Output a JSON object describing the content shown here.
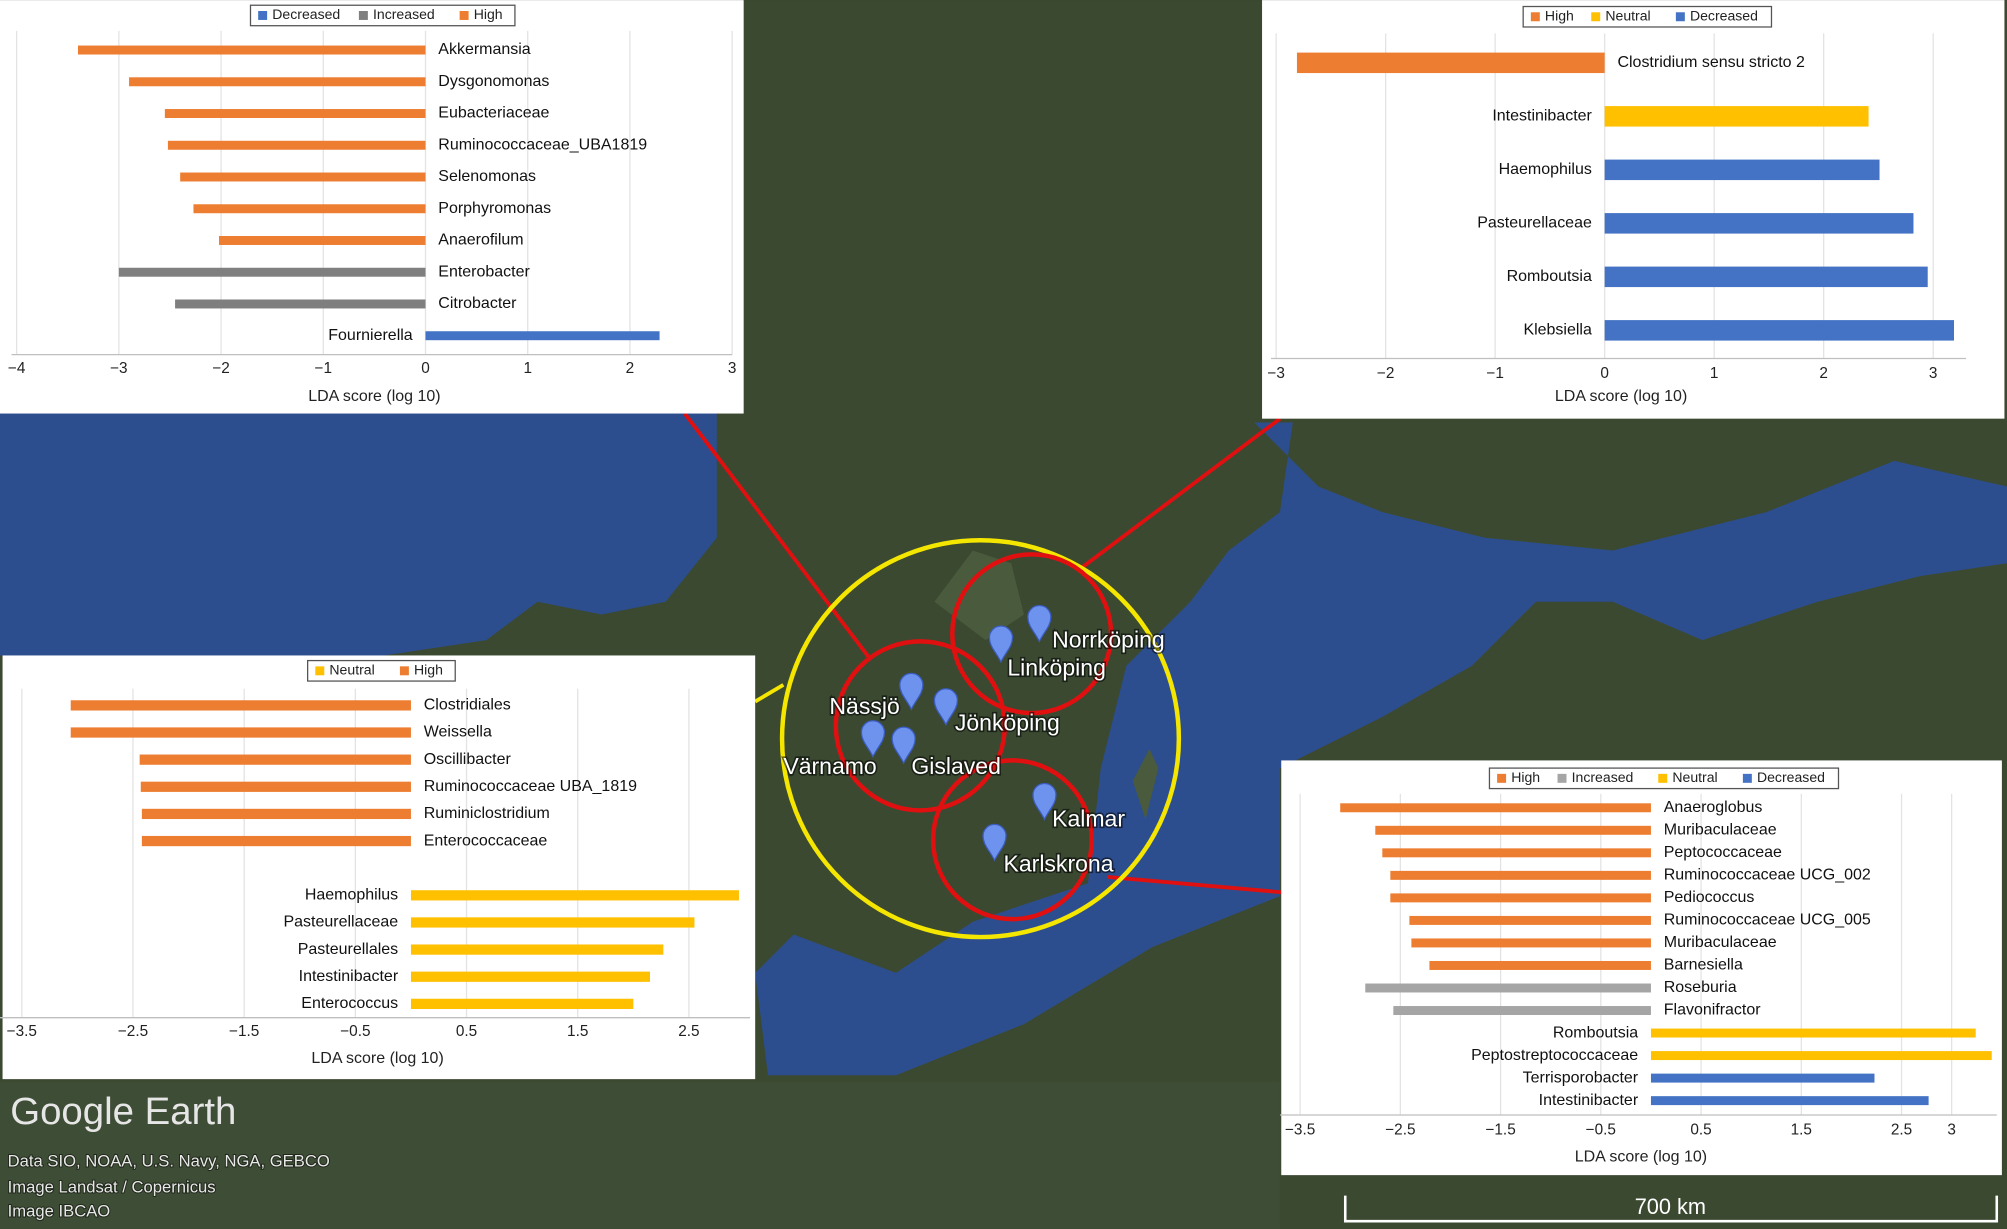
{
  "chart_data": [
    {
      "type": "bar",
      "orientation": "horizontal",
      "x_label": "LDA score (log 10)",
      "legend": "top",
      "grid": true,
      "categories": [
        "Akkermansia",
        "Dysgonomonas",
        "Eubacteriaceae",
        "Ruminococcaceae_UBA1819",
        "Selenomonas",
        "Porphyromonas",
        "Anaerofilum",
        "Enterobacter",
        "Citrobacter",
        "Fournierella"
      ],
      "series": [
        {
          "name": "Decreased",
          "color": "#4472c4",
          "values": [
            null,
            null,
            null,
            null,
            null,
            null,
            null,
            null,
            null,
            2.29
          ]
        },
        {
          "name": "Increased",
          "color": "#7f7f7f",
          "values": [
            null,
            null,
            null,
            null,
            null,
            null,
            null,
            -3.0,
            -2.45,
            null
          ]
        },
        {
          "name": "High",
          "color": "#ed7d31",
          "values": [
            -3.4,
            -2.9,
            -2.55,
            -2.52,
            -2.4,
            -2.27,
            -2.02,
            null,
            null,
            null
          ]
        }
      ],
      "xlim": [
        -4,
        3
      ],
      "xticks": [
        {
          "value": -4,
          "label": "−4"
        },
        {
          "value": -3,
          "label": "−3"
        },
        {
          "value": -2,
          "label": "−2"
        },
        {
          "value": -1,
          "label": "−1"
        },
        0,
        1,
        2,
        3
      ]
    },
    {
      "type": "bar",
      "orientation": "horizontal",
      "x_label": "LDA score (log 10)",
      "legend": "top",
      "grid": true,
      "categories": [
        "Clostridium sensu stricto 2",
        "Intestinibacter",
        "Haemophilus",
        "Pasteurellaceae",
        "Romboutsia",
        "Klebsiella"
      ],
      "series": [
        {
          "name": "High",
          "color": "#ed7d31",
          "values": [
            -2.81,
            null,
            null,
            null,
            null,
            null
          ]
        },
        {
          "name": "Neutral",
          "color": "#ffc000",
          "values": [
            null,
            2.41,
            null,
            null,
            null,
            null
          ]
        },
        {
          "name": "Decreased",
          "color": "#4472c4",
          "values": [
            null,
            null,
            2.51,
            2.82,
            2.95,
            3.19
          ]
        }
      ],
      "xlim": [
        -3,
        3.3
      ],
      "xticks": [
        {
          "value": -3,
          "label": "−3"
        },
        {
          "value": -2,
          "label": "−2"
        },
        {
          "value": -1,
          "label": "−1"
        },
        0,
        1,
        2,
        3
      ]
    },
    {
      "type": "bar",
      "orientation": "horizontal",
      "x_label": "LDA score (log 10)",
      "legend": "top",
      "grid": true,
      "categories": [
        "Clostridiales",
        "Weissella",
        "Oscillibacter",
        "Ruminococcaceae UBA_1819",
        "Ruminiclostridium",
        "Enterococcaceae",
        null,
        "Haemophilus",
        "Pasteurellaceae",
        "Pasteurellales",
        "Intestinibacter",
        "Enterococcus"
      ],
      "series": [
        {
          "name": "Neutral",
          "color": "#ffc000",
          "values": [
            null,
            null,
            null,
            null,
            null,
            null,
            null,
            2.95,
            2.55,
            2.27,
            2.15,
            2.0
          ]
        },
        {
          "name": "High",
          "color": "#ed7d31",
          "values": [
            -3.06,
            -3.06,
            -2.44,
            -2.43,
            -2.42,
            -2.42,
            null,
            null,
            null,
            null,
            null,
            null
          ]
        }
      ],
      "xlim": [
        -3.65,
        3.05
      ],
      "xticks": [
        {
          "value": -3.5,
          "label": "−3.5"
        },
        {
          "value": -2.5,
          "label": "−2.5"
        },
        {
          "value": -1.5,
          "label": "−1.5"
        },
        {
          "value": -0.5,
          "label": "−0.5"
        },
        0.5,
        1.5,
        2.5
      ]
    },
    {
      "type": "bar",
      "orientation": "horizontal",
      "x_label": "LDA score (log 10)",
      "legend": "top",
      "grid": true,
      "categories": [
        "Anaeroglobus",
        "Muribaculaceae",
        "Peptococcaceae",
        "Ruminococcaceae UCG_002",
        "Pediococcus",
        "Ruminococcaceae UCG_005",
        "Muribaculaceae",
        "Barnesiella",
        "Roseburia",
        "Flavonifractor",
        "Romboutsia",
        "Peptostreptococcaceae",
        "Terrisporobacter",
        "Intestinibacter"
      ],
      "series": [
        {
          "name": "High",
          "color": "#ed7d31",
          "values": [
            -3.1,
            -2.75,
            -2.68,
            -2.6,
            -2.6,
            -2.41,
            -2.39,
            -2.21,
            null,
            null,
            null,
            null,
            null,
            null
          ]
        },
        {
          "name": "Increased",
          "color": "#a5a5a5",
          "values": [
            null,
            null,
            null,
            null,
            null,
            null,
            null,
            null,
            -2.85,
            -2.57,
            null,
            null,
            null,
            null
          ]
        },
        {
          "name": "Neutral",
          "color": "#ffc000",
          "values": [
            null,
            null,
            null,
            null,
            null,
            null,
            null,
            null,
            null,
            null,
            3.24,
            3.4,
            null,
            null
          ]
        },
        {
          "name": "Decreased",
          "color": "#4472c4",
          "values": [
            null,
            null,
            null,
            null,
            null,
            null,
            null,
            null,
            null,
            null,
            null,
            null,
            2.23,
            2.77
          ]
        }
      ],
      "xlim": [
        -3.65,
        3.45
      ],
      "xticks": [
        {
          "value": -3.5,
          "label": "−3.5"
        },
        {
          "value": -2.5,
          "label": "−2.5"
        },
        {
          "value": -1.5,
          "label": "−1.5"
        },
        {
          "value": -0.5,
          "label": "−0.5"
        },
        0.5,
        1.5,
        2.5,
        3
      ]
    }
  ],
  "map": {
    "cities": [
      "Norrköping",
      "Linköping",
      "Nässjö",
      "Jönköping",
      "Värnamo",
      "Gislaved",
      "Kalmar",
      "Karlskrona"
    ],
    "logo": "Google Earth",
    "credits": [
      "Data SIO, NOAA, U.S. Navy, NGA, GEBCO",
      "Image Landsat / Copernicus",
      "Image IBCAO"
    ],
    "scale": "700 km"
  }
}
